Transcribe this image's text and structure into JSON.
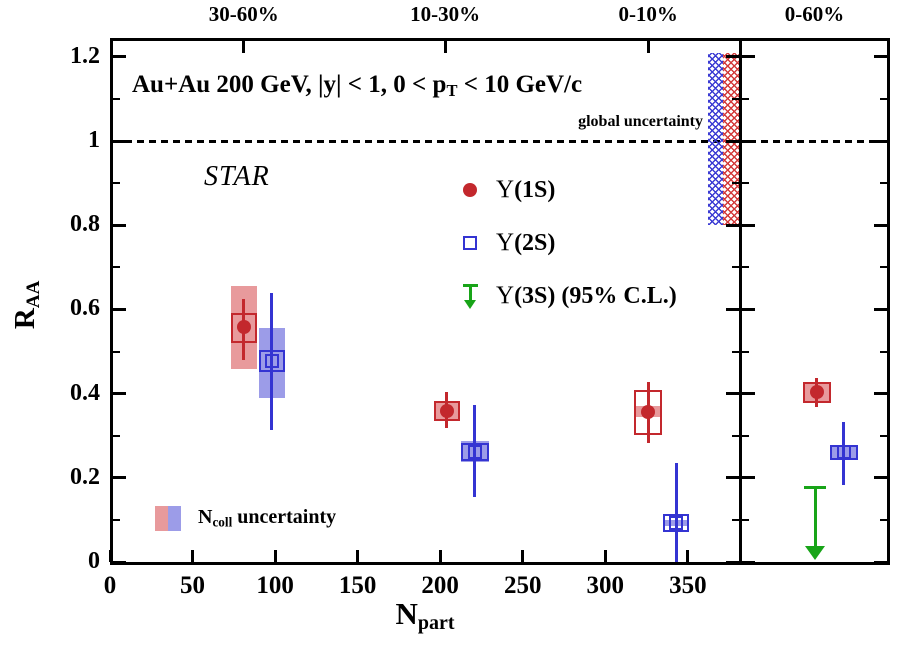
{
  "chart_data": {
    "type": "scatter",
    "title_parts": {
      "pre": "Au+Au 200 GeV, |y| < 1, 0 < p",
      "sub": "T",
      "post": " < 10 GeV/c"
    },
    "experiment_label": "STAR",
    "global_uncertainty_label": "global uncertainty",
    "xlabel_parts": {
      "main": "N",
      "sub": "part"
    },
    "ylabel_parts": {
      "main": "R",
      "sub": "AA"
    },
    "x_ticks": [
      0,
      50,
      100,
      150,
      200,
      250,
      300,
      350
    ],
    "y_ticks": [
      "0",
      "0.2",
      "0.4",
      "0.6",
      "0.8",
      "1",
      "1.2"
    ],
    "y_tick_values": [
      0,
      0.2,
      0.4,
      0.6,
      0.8,
      1.0,
      1.2
    ],
    "y_minor_values": [
      0.1,
      0.3,
      0.5,
      0.7,
      0.9,
      1.1
    ],
    "xlim_main": [
      0,
      381
    ],
    "ylim": [
      0,
      1.245
    ],
    "reference_line_y": 1.0,
    "grid": false,
    "legend_position": "center",
    "top_bins_main": [
      {
        "label": "30-60%",
        "npart": 81
      },
      {
        "label": "10-30%",
        "npart": 203
      },
      {
        "label": "0-10%",
        "npart": 326
      }
    ],
    "right_panel_label": "0-60%",
    "legend": [
      {
        "symbol": "Υ",
        "label": "(1S)",
        "marker": "filled-circle",
        "color_key": "red"
      },
      {
        "symbol": "Υ",
        "label": "(2S)",
        "marker": "open-square",
        "color_key": "blue"
      },
      {
        "symbol": "Υ",
        "label": "(3S) (95% C.L.)",
        "marker": "down-arrow",
        "color_key": "green"
      }
    ],
    "ncoll_legend": {
      "pre": "N",
      "sub": "coll",
      "post": " uncertainty"
    },
    "series": [
      {
        "name": "Upsilon(1S)",
        "panel": "main",
        "marker": "filled-circle",
        "color_key": "red",
        "points": [
          {
            "x": 81,
            "y": 0.558,
            "stat": [
              0.48,
              0.625
            ],
            "box": [
              0.52,
              0.592
            ],
            "band": [
              0.458,
              0.655
            ],
            "halfw": 8.0
          },
          {
            "x": 204,
            "y": 0.359,
            "stat": [
              0.318,
              0.404
            ],
            "box": [
              0.335,
              0.383
            ],
            "band": [
              0.337,
              0.381
            ],
            "halfw": 8.0
          },
          {
            "x": 326,
            "y": 0.356,
            "stat": [
              0.283,
              0.428
            ],
            "box": [
              0.302,
              0.409
            ],
            "band": [
              0.344,
              0.371
            ],
            "halfw": 8.5
          }
        ]
      },
      {
        "name": "Upsilon(2S)",
        "panel": "main",
        "marker": "open-square",
        "color_key": "blue",
        "points": [
          {
            "x": 98,
            "y": 0.477,
            "stat": [
              0.313,
              0.639
            ],
            "box": [
              0.451,
              0.504
            ],
            "band": [
              0.39,
              0.556
            ],
            "halfw": 8.0
          },
          {
            "x": 221,
            "y": 0.261,
            "stat": [
              0.154,
              0.373
            ],
            "box": [
              0.24,
              0.283
            ],
            "band": [
              0.237,
              0.287
            ],
            "halfw": 8.5
          },
          {
            "x": 343,
            "y": 0.093,
            "stat": [
              0.0,
              0.235
            ],
            "box": [
              0.071,
              0.114
            ],
            "band": [
              0.086,
              0.1
            ],
            "halfw": 8.0
          }
        ]
      },
      {
        "name": "Upsilon(1S)",
        "panel": "right",
        "marker": "filled-circle",
        "color_key": "red",
        "points": [
          {
            "x_frac": 0.515,
            "y": 0.404,
            "stat": [
              0.368,
              0.437
            ],
            "box": [
              0.378,
              0.428
            ],
            "band": [
              0.378,
              0.428
            ],
            "halfw_frac": 0.093
          }
        ]
      },
      {
        "name": "Upsilon(2S)",
        "panel": "right",
        "marker": "open-square",
        "color_key": "blue",
        "points": [
          {
            "x_frac": 0.695,
            "y": 0.261,
            "stat": [
              0.183,
              0.333
            ],
            "box": [
              0.242,
              0.278
            ],
            "band": [
              0.242,
              0.278
            ],
            "halfw_frac": 0.09
          }
        ]
      }
    ],
    "upper_limit": {
      "series": "Upsilon(3S)",
      "panel": "right",
      "x_frac": 0.505,
      "y_limit": 0.176,
      "confidence": "95% C.L.",
      "color_key": "green"
    },
    "global_band": {
      "y_range": [
        0.8,
        1.21
      ],
      "blue_npart": [
        362.0,
        371.5
      ],
      "red_npart": [
        371.5,
        381.0
      ]
    },
    "colors": {
      "red": "#c3282d",
      "red_band": "#e89a9c",
      "blue": "#3434d2",
      "blue_band": "#9c9ce8",
      "green": "#18a418",
      "hatch_red": "#d33b3b",
      "hatch_blue": "#3b3bd3",
      "axis": "#000000"
    }
  }
}
